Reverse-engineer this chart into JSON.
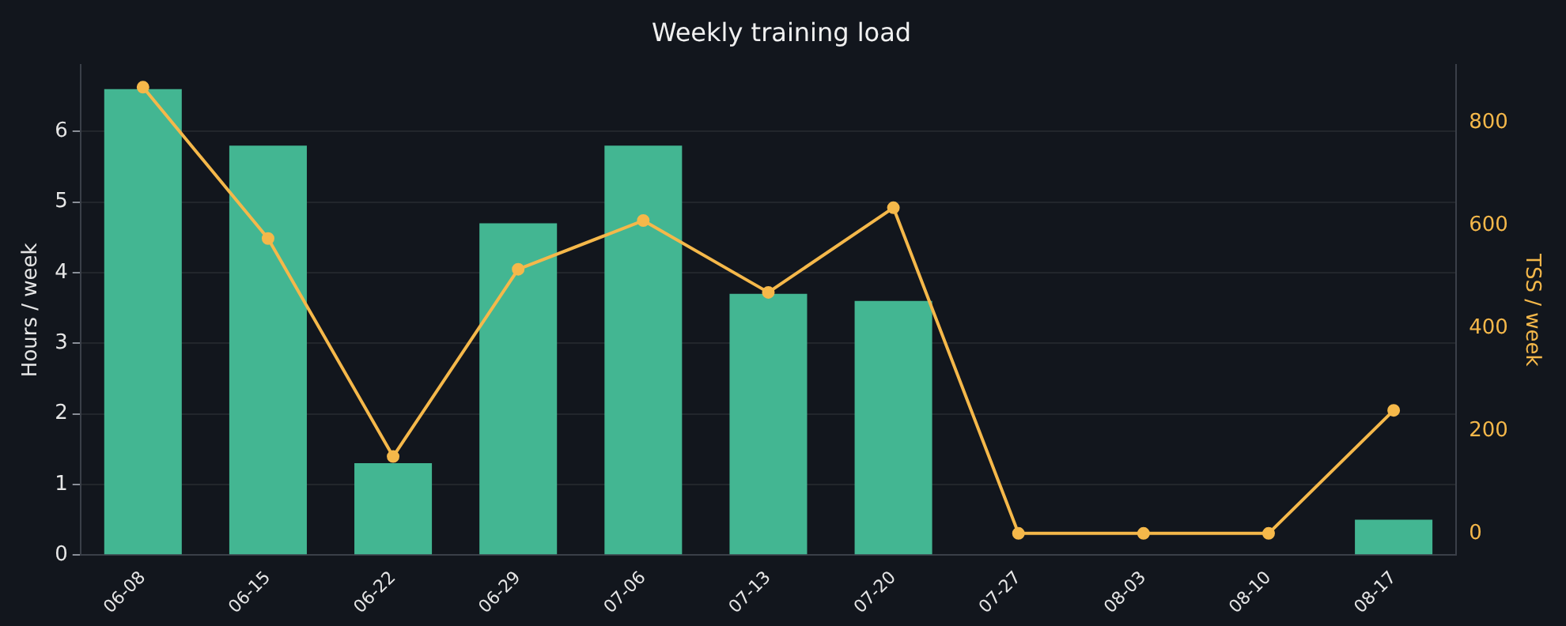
{
  "chart_data": {
    "type": "bar",
    "title": "Weekly training load",
    "ylabel": "Hours / week",
    "y2label": "TSS / week",
    "categories": [
      "06-08",
      "06-15",
      "06-22",
      "06-29",
      "07-06",
      "07-13",
      "07-20",
      "07-27",
      "08-03",
      "08-10",
      "08-17"
    ],
    "series": [
      {
        "color": "#43b692",
        "values": [
          6.6,
          5.8,
          1.3,
          4.7,
          5.8,
          3.7,
          3.6,
          0,
          0,
          0,
          0.5
        ]
      },
      {
        "type": "line",
        "axis": "y2",
        "color": "#f5b84a",
        "values": [
          870,
          575,
          150,
          515,
          610,
          470,
          635,
          0,
          0,
          0,
          240
        ]
      }
    ],
    "ylim": [
      0,
      6.94
    ],
    "yticks": [
      0,
      1,
      2,
      3,
      4,
      5,
      6
    ],
    "y2lim": [
      -42,
      913
    ],
    "y2ticks": [
      0,
      200,
      400,
      600,
      800
    ],
    "grid": "y",
    "legend": false,
    "marker": "circle",
    "line_style": "solid"
  }
}
